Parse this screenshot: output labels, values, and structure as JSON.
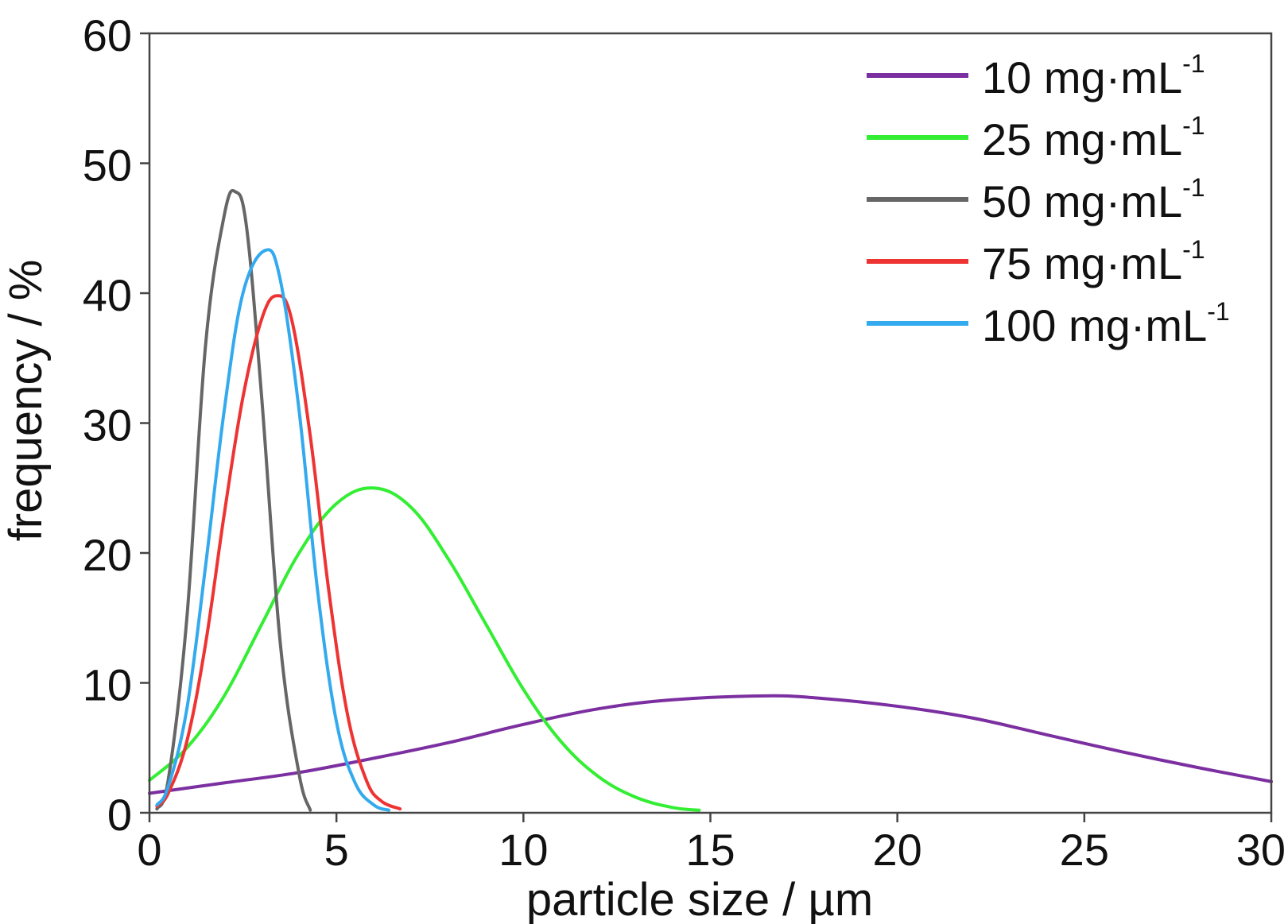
{
  "chart_data": {
    "type": "line",
    "xlabel": "particle size / µm",
    "ylabel": "frequency / %",
    "xlim": [
      0,
      30
    ],
    "ylim": [
      0,
      60
    ],
    "xticks": [
      0,
      5,
      10,
      15,
      20,
      25,
      30
    ],
    "yticks": [
      0,
      10,
      20,
      30,
      40,
      50,
      60
    ],
    "grid": false,
    "legend_position": "top-right",
    "series": [
      {
        "name": "10 mg·mL",
        "name_sup": "-1",
        "color": "#7b2fa0",
        "x": [
          0,
          2,
          4,
          6,
          8,
          10,
          12,
          14,
          16.5,
          18,
          20,
          22,
          24,
          26,
          28,
          30
        ],
        "y": [
          1.5,
          2.3,
          3.1,
          4.2,
          5.4,
          6.8,
          8.0,
          8.7,
          9.0,
          8.8,
          8.2,
          7.3,
          6.0,
          4.7,
          3.5,
          2.4
        ]
      },
      {
        "name": "25 mg·mL",
        "name_sup": "-1",
        "color": "#33ee33",
        "x": [
          0,
          1,
          2,
          3,
          4,
          5,
          6,
          7,
          8,
          9,
          10,
          11,
          12,
          13,
          14,
          14.7
        ],
        "y": [
          2.5,
          5.0,
          9.0,
          14.5,
          20.0,
          23.8,
          25.0,
          23.5,
          19.5,
          14.5,
          9.5,
          5.5,
          2.8,
          1.2,
          0.4,
          0.2
        ]
      },
      {
        "name": "50 mg·mL",
        "name_sup": "-1",
        "color": "#666666",
        "x": [
          0.2,
          0.5,
          1.0,
          1.5,
          2.0,
          2.3,
          2.6,
          3.0,
          3.5,
          4.0,
          4.3
        ],
        "y": [
          0.3,
          2.5,
          15.0,
          36.0,
          46.0,
          47.8,
          45.0,
          32.0,
          13.0,
          3.0,
          0.2
        ]
      },
      {
        "name": "75 mg·mL",
        "name_sup": "-1",
        "color": "#ee3333",
        "x": [
          0.2,
          0.5,
          1.0,
          1.5,
          2.0,
          2.5,
          3.0,
          3.4,
          3.8,
          4.3,
          4.8,
          5.3,
          5.8,
          6.2,
          6.7
        ],
        "y": [
          0.5,
          1.5,
          5.5,
          13.0,
          23.0,
          32.0,
          38.0,
          39.8,
          38.0,
          29.0,
          17.0,
          7.5,
          2.5,
          0.9,
          0.3
        ]
      },
      {
        "name": "100 mg·mL",
        "name_sup": "-1",
        "color": "#33aaee",
        "x": [
          0.2,
          0.5,
          1.0,
          1.5,
          2.0,
          2.5,
          3.1,
          3.5,
          4.0,
          4.5,
          5.0,
          5.5,
          6.0,
          6.4
        ],
        "y": [
          0.6,
          2.0,
          8.0,
          19.0,
          31.0,
          40.0,
          43.3,
          41.0,
          31.0,
          17.0,
          7.0,
          2.3,
          0.6,
          0.2
        ]
      }
    ]
  }
}
